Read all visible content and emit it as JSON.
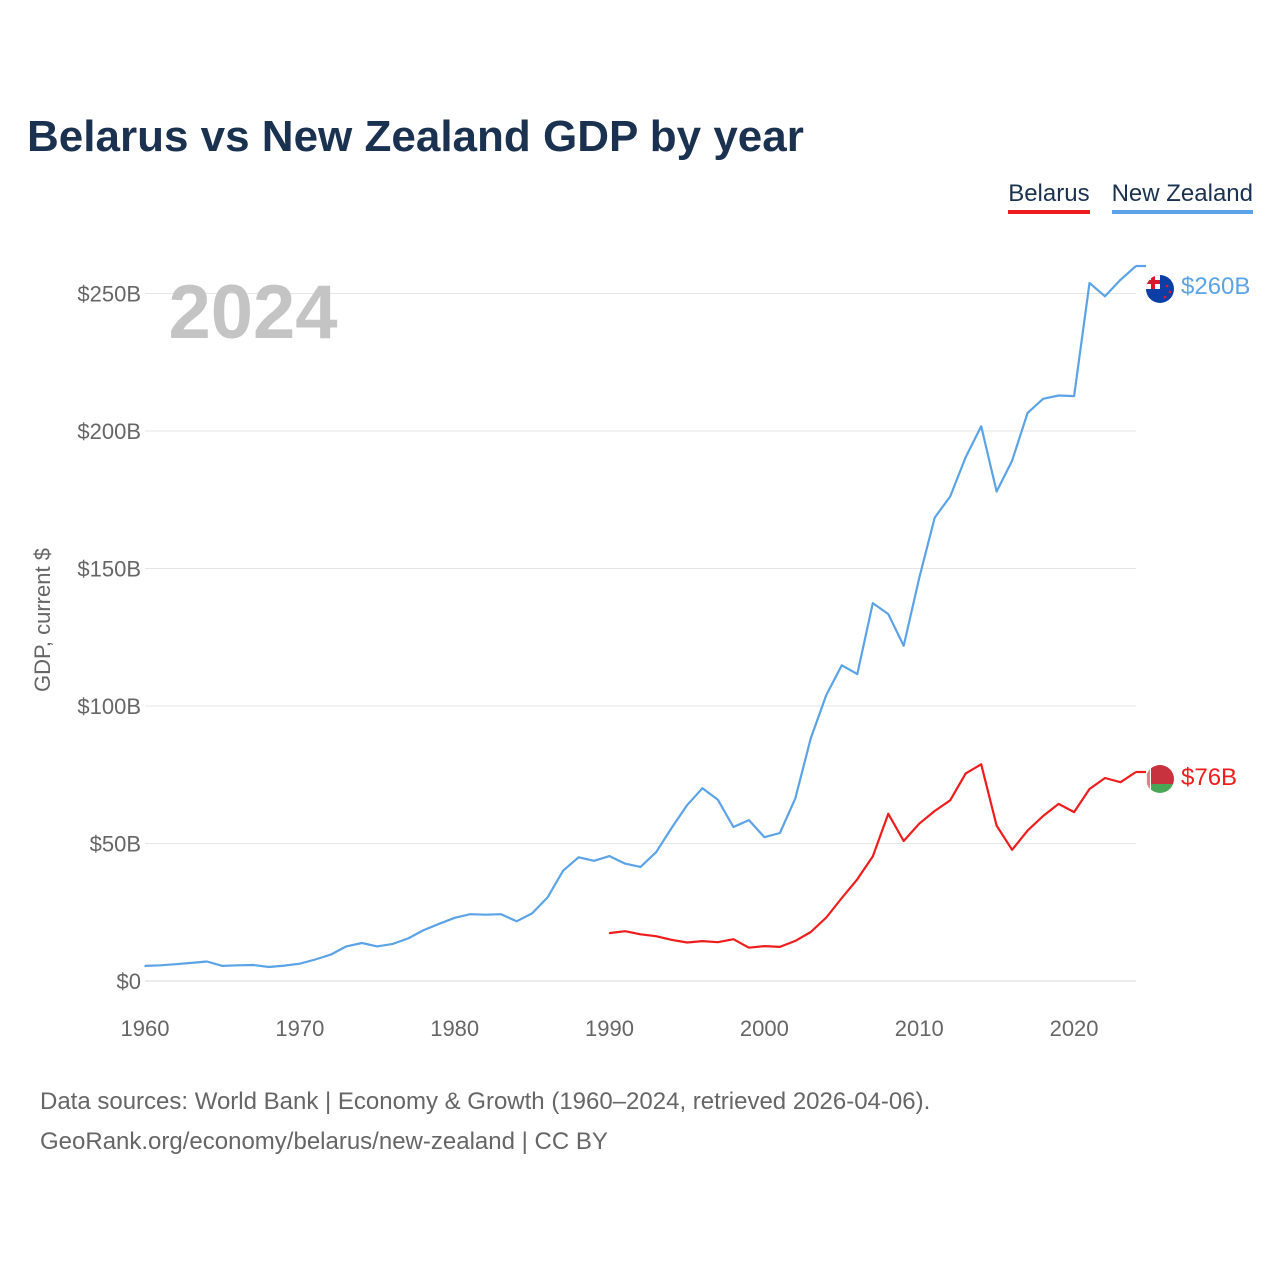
{
  "title": "Belarus vs New Zealand GDP by year",
  "legend": {
    "belarus": "Belarus",
    "new_zealand": "New Zealand"
  },
  "current_year": "2024",
  "source": {
    "line1": "Data sources: World Bank | Economy & Growth (1960–2024, retrieved 2026-04-06).",
    "line2": "GeoRank.org/economy/belarus/new-zealand | CC BY"
  },
  "chart_data": {
    "type": "line",
    "title": "Belarus vs New Zealand GDP by year",
    "xlabel": "",
    "ylabel": "GDP, current $",
    "xlim": [
      1960,
      2024
    ],
    "ylim": [
      0,
      260
    ],
    "y_unit": "billion USD",
    "y_ticks": [
      0,
      50,
      100,
      150,
      200,
      250
    ],
    "y_tick_labels": [
      "$0",
      "$50B",
      "$100B",
      "$150B",
      "$200B",
      "$250B"
    ],
    "x_ticks": [
      1960,
      1970,
      1980,
      1990,
      2000,
      2010,
      2020
    ],
    "x_tick_labels": [
      "1960",
      "1970",
      "1980",
      "1990",
      "2000",
      "2010",
      "2020"
    ],
    "grid": true,
    "legend_position": "top-right",
    "series": [
      {
        "name": "New Zealand",
        "color": "#5ba3e6",
        "end_label": "$260B",
        "x": [
          1960,
          1961,
          1962,
          1963,
          1964,
          1965,
          1966,
          1967,
          1968,
          1969,
          1970,
          1971,
          1972,
          1973,
          1974,
          1975,
          1976,
          1977,
          1978,
          1979,
          1980,
          1981,
          1982,
          1983,
          1984,
          1985,
          1986,
          1987,
          1988,
          1989,
          1990,
          1991,
          1992,
          1993,
          1994,
          1995,
          1996,
          1997,
          1998,
          1999,
          2000,
          2001,
          2002,
          2003,
          2004,
          2005,
          2006,
          2007,
          2008,
          2009,
          2010,
          2011,
          2012,
          2013,
          2014,
          2015,
          2016,
          2017,
          2018,
          2019,
          2020,
          2021,
          2022,
          2023,
          2024
        ],
        "values": [
          5.5,
          5.7,
          6.1,
          6.6,
          7.1,
          5.5,
          5.7,
          5.8,
          5.1,
          5.6,
          6.3,
          7.8,
          9.6,
          12.6,
          13.8,
          12.6,
          13.5,
          15.5,
          18.5,
          20.8,
          23.0,
          24.3,
          24.1,
          24.3,
          21.7,
          24.6,
          30.4,
          40.1,
          45.0,
          43.7,
          45.4,
          42.7,
          41.5,
          46.8,
          55.6,
          63.9,
          70.1,
          65.9,
          56.0,
          58.5,
          52.3,
          53.8,
          66.4,
          88.3,
          104.0,
          114.8,
          111.6,
          137.4,
          133.4,
          121.9,
          146.5,
          168.5,
          176.2,
          190.5,
          201.7,
          178.0,
          189.2,
          206.6,
          211.7,
          212.9,
          212.7,
          253.8,
          249.0,
          255.0,
          260.0
        ]
      },
      {
        "name": "Belarus",
        "color": "#ee1c1c",
        "end_label": "$76B",
        "x": [
          1990,
          1991,
          1992,
          1993,
          1994,
          1995,
          1996,
          1997,
          1998,
          1999,
          2000,
          2001,
          2002,
          2003,
          2004,
          2005,
          2006,
          2007,
          2008,
          2009,
          2010,
          2011,
          2012,
          2013,
          2014,
          2015,
          2016,
          2017,
          2018,
          2019,
          2020,
          2021,
          2022,
          2023,
          2024
        ],
        "values": [
          17.4,
          18.1,
          17.0,
          16.3,
          15.0,
          14.0,
          14.5,
          14.1,
          15.2,
          12.1,
          12.7,
          12.4,
          14.6,
          17.8,
          23.1,
          30.2,
          37.0,
          45.3,
          60.8,
          50.9,
          57.2,
          61.8,
          65.7,
          75.5,
          78.8,
          56.5,
          47.7,
          54.7,
          60.0,
          64.4,
          61.4,
          69.8,
          73.8,
          72.3,
          76.0
        ]
      }
    ]
  }
}
